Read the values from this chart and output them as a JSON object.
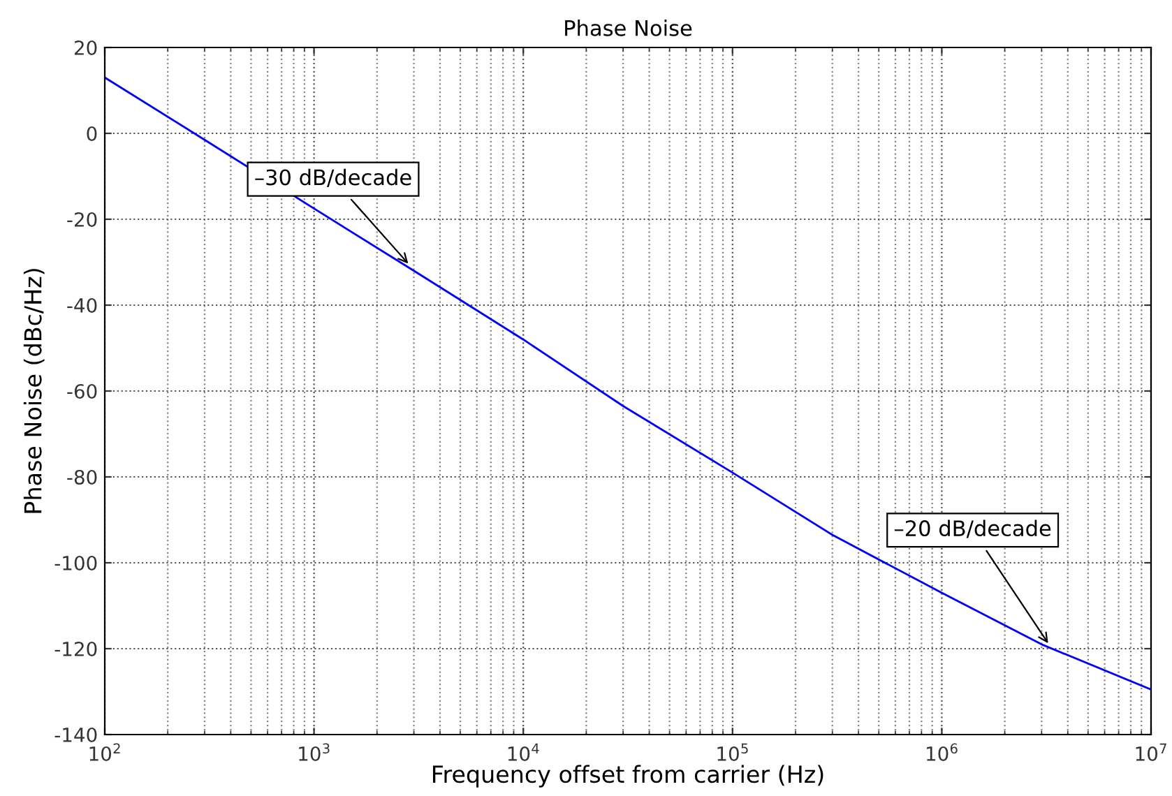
{
  "chart_data": {
    "type": "line",
    "title": "Phase Noise",
    "xlabel": "Frequency offset from carrier (Hz)",
    "ylabel": "Phase Noise (dBc/Hz)",
    "log": "x",
    "x": [
      100,
      300,
      1000,
      3000,
      10000,
      30000,
      100000,
      300000,
      1000000,
      3000000,
      10000000
    ],
    "series": [
      {
        "color": "#0000ff",
        "values": [
          13,
          -1.5,
          -17.5,
          -32,
          -48,
          -63.5,
          -79,
          -93.5,
          -107,
          -119,
          -129.5
        ]
      }
    ],
    "xlim": [
      100,
      10000000
    ],
    "xticks": [
      {
        "value": 100,
        "label": "10$^{2}$"
      },
      {
        "value": 1000,
        "label": "10$^{3}$"
      },
      {
        "value": 10000,
        "label": "10$^{4}$"
      },
      {
        "value": 100000,
        "label": "10$^{5}$"
      },
      {
        "value": 1000000,
        "label": "10$^{6}$"
      },
      {
        "value": 10000000,
        "label": "10$^{7}$"
      }
    ],
    "ylim": [
      -140,
      20
    ],
    "yticks": [
      -140,
      -120,
      -100,
      -80,
      -60,
      -40,
      -20,
      0,
      20
    ],
    "grid": true,
    "line_style": "solid",
    "marker": "none",
    "annotations": [
      {
        "text": "–30 dB/decade",
        "x": 2900,
        "y": -31
      },
      {
        "text": "–20 dB/decade",
        "x": 3300000,
        "y": -119.5
      }
    ]
  }
}
